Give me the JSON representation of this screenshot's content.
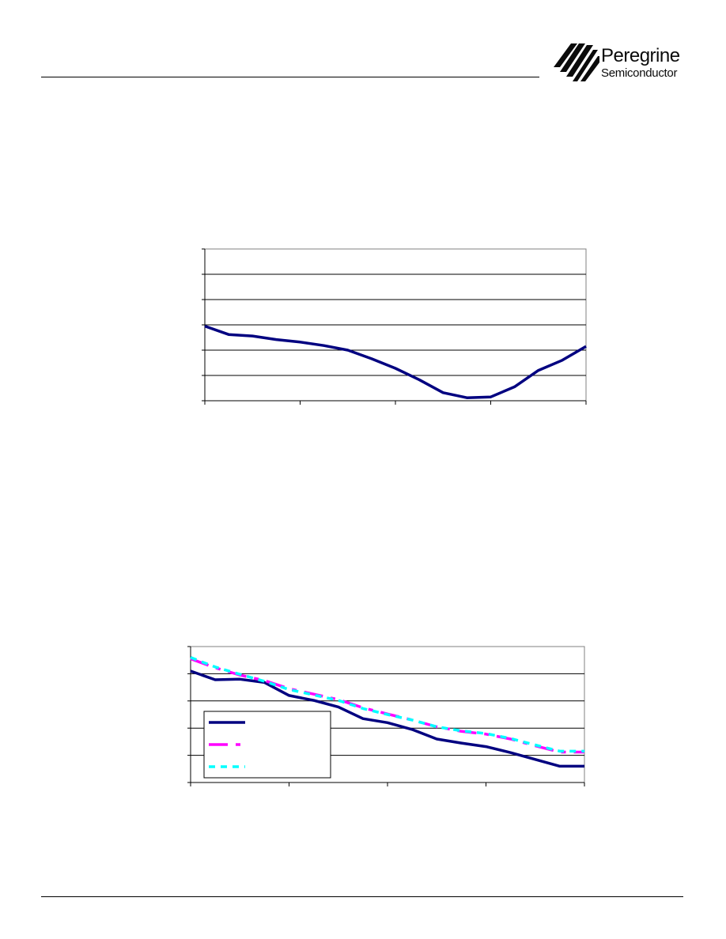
{
  "header": {
    "logo": {
      "name": "Peregrine",
      "subtitle": "Semiconductor"
    }
  },
  "chart_data": [
    {
      "type": "line",
      "title": "",
      "xlabel": "",
      "ylabel": "",
      "xlim": [
        0,
        4
      ],
      "ylim": [
        0,
        6
      ],
      "grid": true,
      "x": [
        0,
        0.25,
        0.5,
        0.75,
        1.0,
        1.25,
        1.5,
        1.75,
        2.0,
        2.25,
        2.5,
        2.75,
        3.0,
        3.25,
        3.5,
        3.75,
        4.0
      ],
      "series": [
        {
          "name": "",
          "color": "#000080",
          "values": [
            2.95,
            2.62,
            2.56,
            2.42,
            2.32,
            2.18,
            2.0,
            1.66,
            1.28,
            0.83,
            0.32,
            0.12,
            0.15,
            0.55,
            1.2,
            1.6,
            2.15
          ]
        }
      ]
    },
    {
      "type": "line",
      "title": "",
      "xlabel": "",
      "ylabel": "",
      "xlim": [
        0,
        4
      ],
      "ylim": [
        0,
        5
      ],
      "grid": true,
      "legend": "lower-left",
      "x": [
        0,
        0.25,
        0.5,
        0.75,
        1.0,
        1.25,
        1.5,
        1.75,
        2.0,
        2.25,
        2.5,
        2.75,
        3.0,
        3.25,
        3.5,
        3.75,
        4.0
      ],
      "series": [
        {
          "name": "",
          "color": "#000080",
          "dash": "solid",
          "values": [
            4.1,
            3.78,
            3.8,
            3.68,
            3.2,
            3.02,
            2.78,
            2.35,
            2.2,
            1.95,
            1.6,
            1.45,
            1.32,
            1.1,
            0.85,
            0.6,
            0.6
          ]
        },
        {
          "name": "",
          "color": "#ff00ff",
          "dash": "dashdot",
          "values": [
            4.55,
            4.22,
            3.95,
            3.75,
            3.45,
            3.25,
            3.05,
            2.75,
            2.52,
            2.3,
            2.05,
            1.88,
            1.78,
            1.6,
            1.35,
            1.12,
            1.12
          ]
        },
        {
          "name": "",
          "color": "#00ffff",
          "dash": "dotted",
          "values": [
            4.6,
            4.25,
            3.98,
            3.72,
            3.42,
            3.22,
            3.02,
            2.72,
            2.5,
            2.3,
            2.05,
            1.9,
            1.8,
            1.62,
            1.38,
            1.15,
            1.15
          ]
        }
      ]
    }
  ]
}
